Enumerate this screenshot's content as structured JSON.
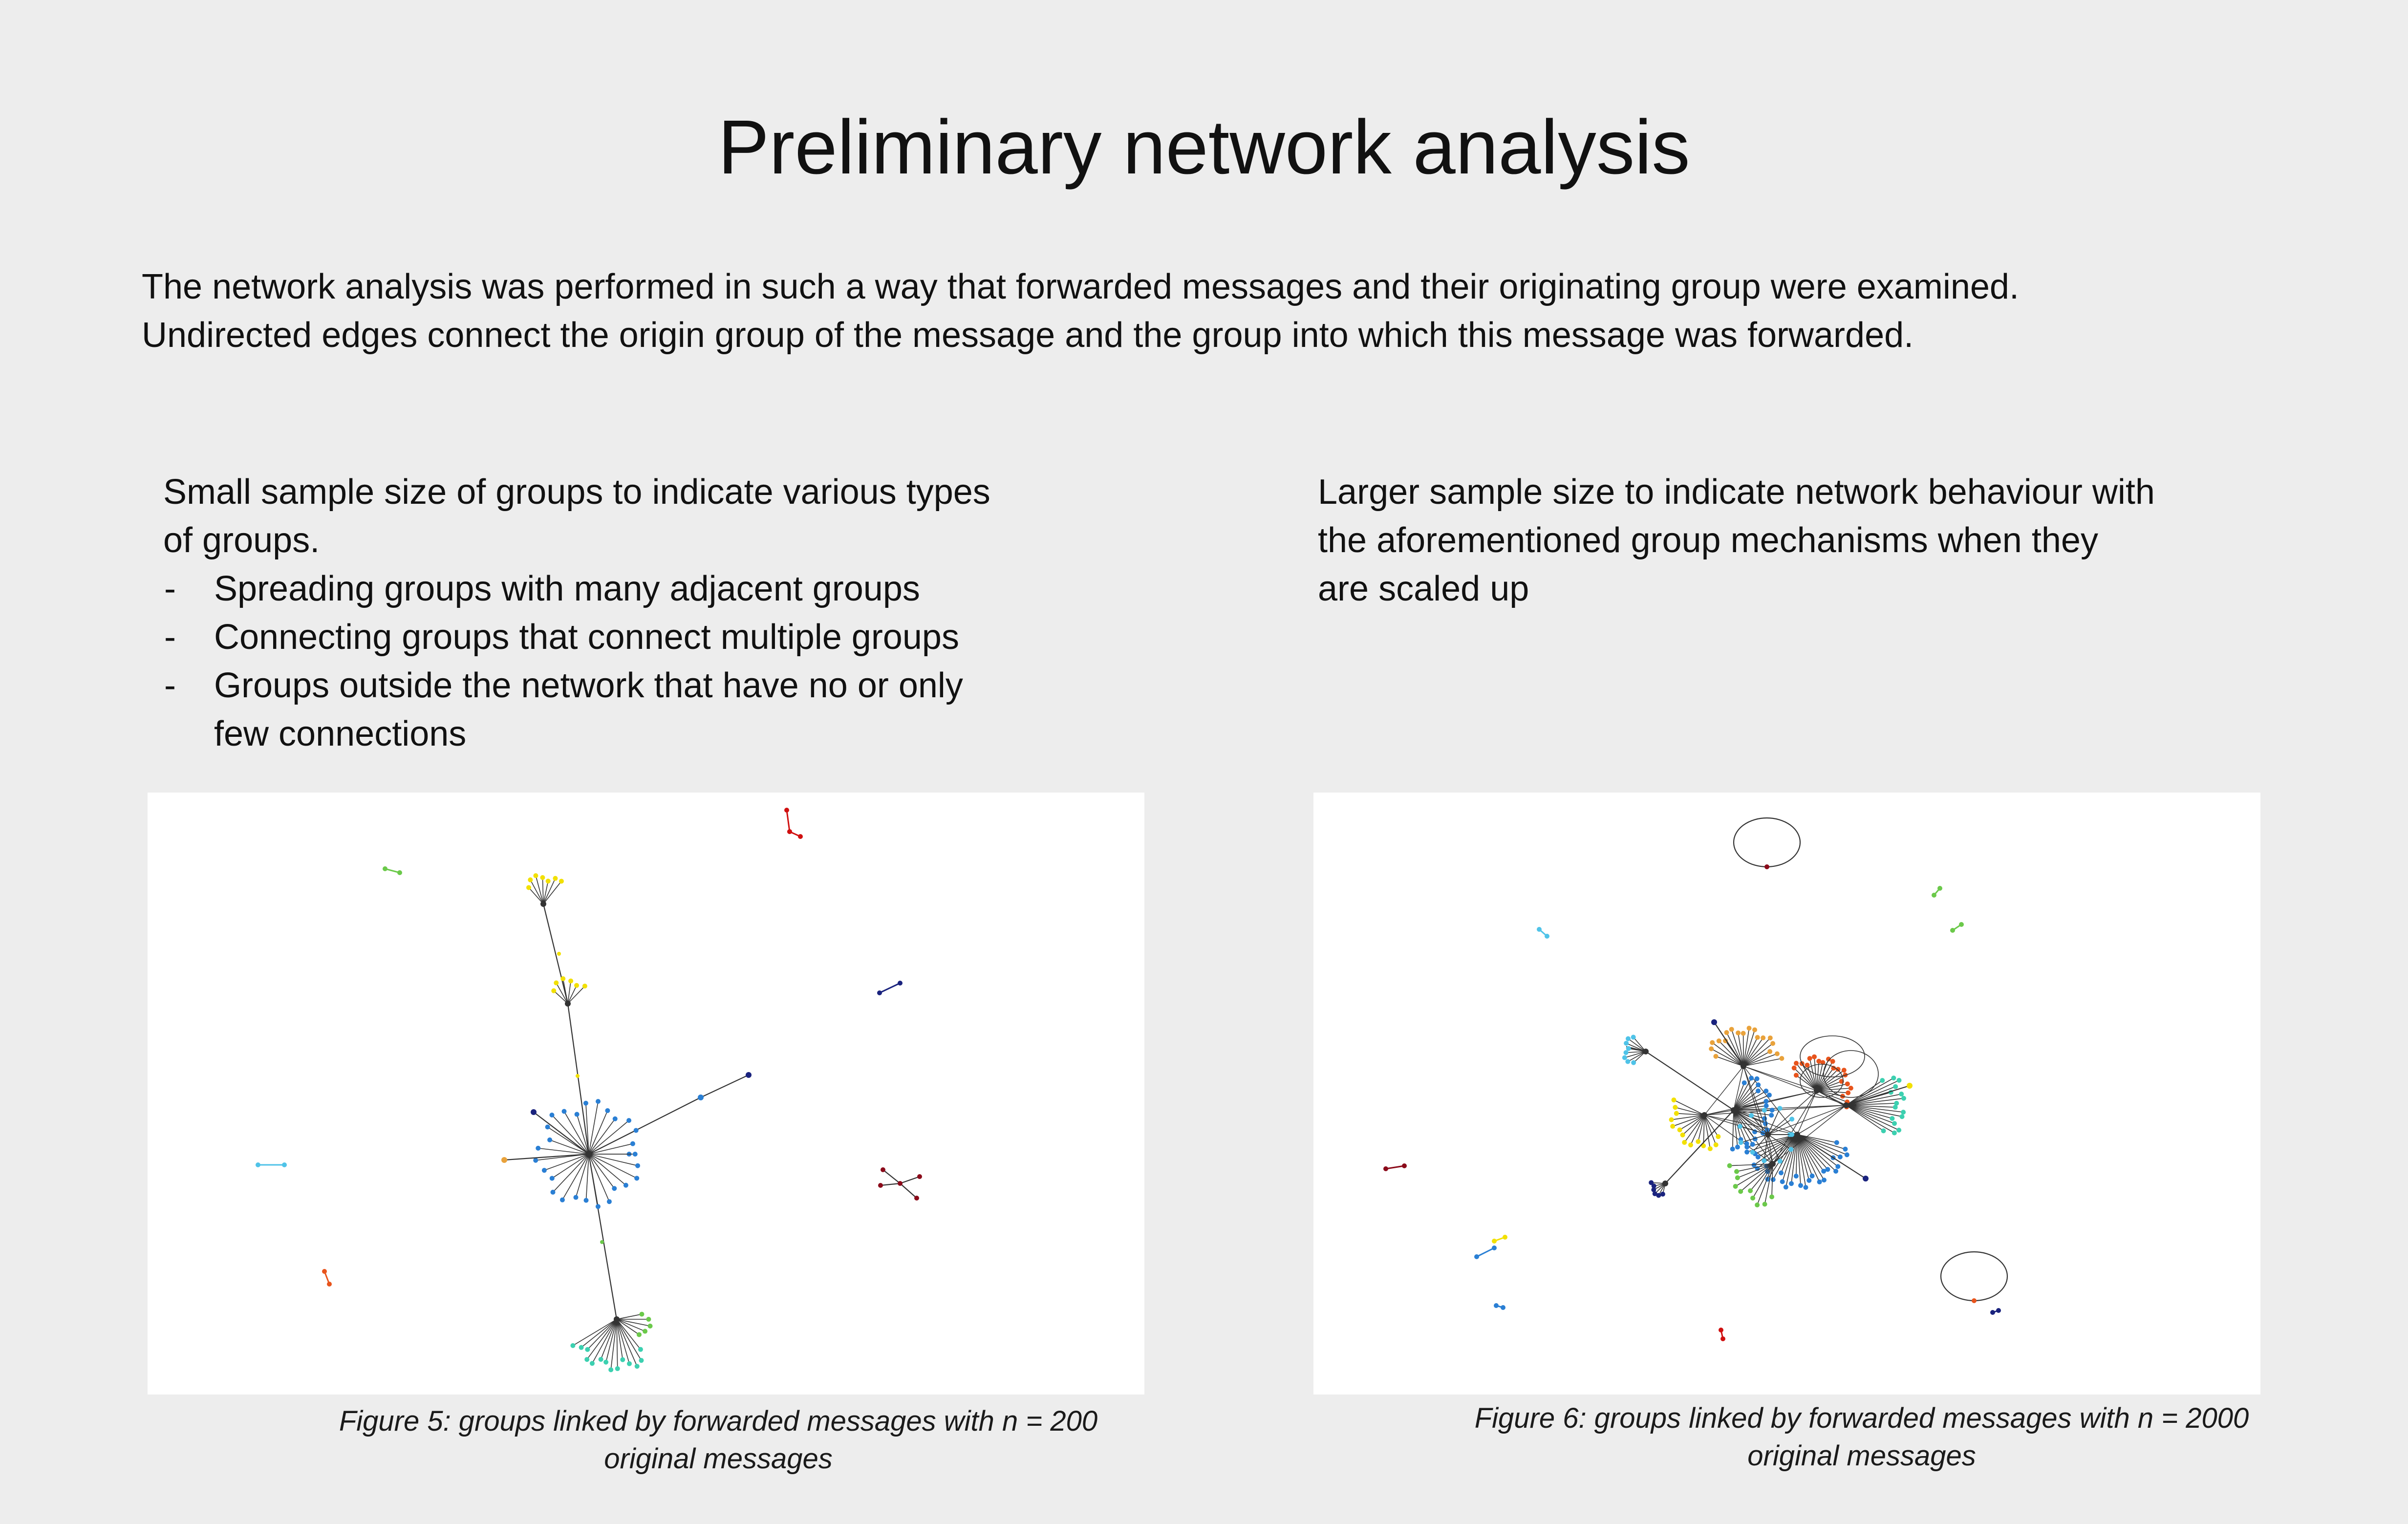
{
  "title": "Preliminary network analysis",
  "intro": {
    "line1": "The network analysis was performed in such a way that forwarded messages and their originating group were examined.",
    "line2": "Undirected edges connect the origin group of the message and the group into which this message was forwarded."
  },
  "left_column": {
    "line1": "Small sample size of groups to indicate various types",
    "line2": "of groups.",
    "bullets": [
      "Spreading groups with many adjacent groups",
      "Connecting groups that connect multiple groups",
      "Groups outside the network that have no or only",
      "few connections"
    ]
  },
  "right_column": {
    "line1": "Larger sample size to indicate network behaviour with",
    "line2": "the aforementioned group mechanisms when they",
    "line3": "are scaled up"
  },
  "figure5": {
    "caption_line1": "Figure 5: groups linked by forwarded messages with n = 200",
    "caption_line2": "original messages"
  },
  "figure6": {
    "caption_line1": "Figure 6: groups linked by forwarded messages with n = 2000",
    "caption_line2": "original messages"
  },
  "node_colors": {
    "blue": "#2a7fd4",
    "navy": "#1a237e",
    "dark_red": "#8b0a1a",
    "red": "#d01010",
    "yellow": "#f2e000",
    "green": "#6bc94a",
    "teal": "#3cd0b0",
    "cyan": "#4fc3e8",
    "orange": "#e9a23b",
    "orange_red": "#e8541c",
    "edge": "#333333"
  }
}
